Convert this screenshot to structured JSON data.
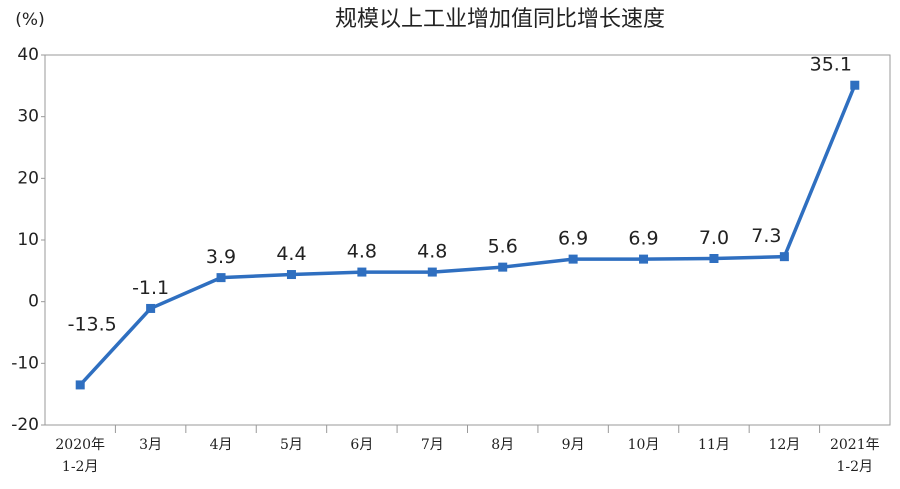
{
  "chart_data": {
    "type": "line",
    "title": "规模以上工业增加值同比增长速度",
    "y_label": "(%)",
    "categories": [
      "2020年\n1-2月",
      "3月",
      "4月",
      "5月",
      "6月",
      "7月",
      "8月",
      "9月",
      "10月",
      "11月",
      "12月",
      "2021年\n1-2月"
    ],
    "series": [
      {
        "name": "规模以上工业增加值同比增长速度",
        "color": "#2f6fc0",
        "values": [
          -13.5,
          -1.1,
          3.9,
          4.4,
          4.8,
          4.8,
          5.6,
          6.9,
          6.9,
          7.0,
          7.3,
          35.1
        ],
        "value_labels": [
          "-13.5",
          "-1.1",
          "3.9",
          "4.4",
          "4.8",
          "4.8",
          "5.6",
          "6.9",
          "6.9",
          "7.0",
          "7.3",
          "35.1"
        ]
      }
    ],
    "ylim": [
      -20,
      40
    ],
    "yticks": [
      -20,
      -10,
      0,
      10,
      20,
      30,
      40
    ],
    "grid": false
  }
}
